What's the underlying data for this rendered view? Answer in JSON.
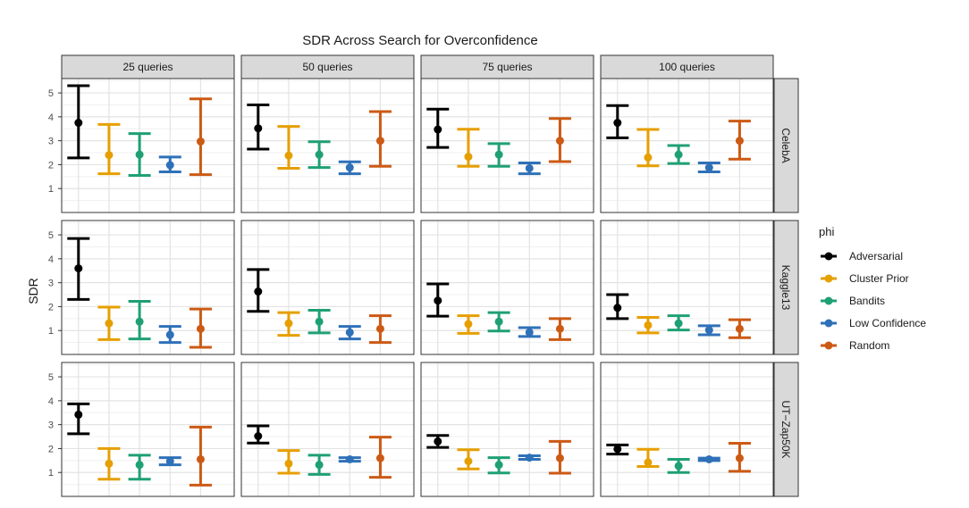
{
  "chart_data": {
    "type": "errorbar",
    "title": "SDR Across Search for Overconfidence",
    "ylabel": "SDR",
    "xlabel": "",
    "ylim": [
      0,
      5.6
    ],
    "yticks": [
      1,
      2,
      3,
      4,
      5
    ],
    "grid": true,
    "legend": {
      "title": "phi",
      "position": "right"
    },
    "columns": [
      "25 queries",
      "50 queries",
      "75 queries",
      "100 queries"
    ],
    "rows": [
      "CelebA",
      "Kaggle13",
      "UT−Zap50K"
    ],
    "series": [
      {
        "name": "Adversarial",
        "color": "#000000"
      },
      {
        "name": "Cluster Prior",
        "color": "#E69F00"
      },
      {
        "name": "Bandits",
        "color": "#1FA074"
      },
      {
        "name": "Low Confidence",
        "color": "#2F71B8"
      },
      {
        "name": "Random",
        "color": "#CC5A14"
      }
    ],
    "panels": [
      [
        [
          [
            3.75,
            2.28,
            5.3
          ],
          [
            2.4,
            1.62,
            3.68
          ],
          [
            2.42,
            1.55,
            3.3
          ],
          [
            1.98,
            1.7,
            2.32
          ],
          [
            2.97,
            1.58,
            4.75
          ]
        ],
        [
          [
            3.52,
            2.65,
            4.5
          ],
          [
            2.38,
            1.85,
            3.6
          ],
          [
            2.42,
            1.88,
            2.96
          ],
          [
            1.88,
            1.62,
            2.12
          ],
          [
            3.0,
            1.93,
            4.22
          ]
        ],
        [
          [
            3.47,
            2.72,
            4.32
          ],
          [
            2.33,
            1.93,
            3.48
          ],
          [
            2.42,
            1.93,
            2.88
          ],
          [
            1.85,
            1.62,
            2.07
          ],
          [
            3.0,
            2.13,
            3.93
          ]
        ],
        [
          [
            3.75,
            3.12,
            4.47
          ],
          [
            2.3,
            1.95,
            3.47
          ],
          [
            2.42,
            2.05,
            2.8
          ],
          [
            1.88,
            1.7,
            2.07
          ],
          [
            3.0,
            2.23,
            3.82
          ]
        ]
      ],
      [
        [
          [
            3.6,
            2.3,
            4.85
          ],
          [
            1.3,
            0.62,
            1.98
          ],
          [
            1.37,
            0.65,
            2.22
          ],
          [
            0.82,
            0.5,
            1.17
          ],
          [
            1.07,
            0.3,
            1.9
          ]
        ],
        [
          [
            2.63,
            1.8,
            3.55
          ],
          [
            1.3,
            0.8,
            1.75
          ],
          [
            1.37,
            0.9,
            1.85
          ],
          [
            0.92,
            0.65,
            1.17
          ],
          [
            1.07,
            0.5,
            1.62
          ]
        ],
        [
          [
            2.25,
            1.6,
            2.95
          ],
          [
            1.27,
            0.88,
            1.62
          ],
          [
            1.37,
            0.98,
            1.75
          ],
          [
            0.92,
            0.75,
            1.12
          ],
          [
            1.07,
            0.62,
            1.5
          ]
        ],
        [
          [
            1.95,
            1.5,
            2.5
          ],
          [
            1.22,
            0.9,
            1.55
          ],
          [
            1.3,
            1.02,
            1.62
          ],
          [
            1.02,
            0.82,
            1.2
          ],
          [
            1.07,
            0.7,
            1.45
          ]
        ]
      ],
      [
        [
          [
            3.42,
            2.62,
            3.87
          ],
          [
            1.37,
            0.72,
            2.0
          ],
          [
            1.32,
            0.72,
            1.72
          ],
          [
            1.47,
            1.32,
            1.62
          ],
          [
            1.55,
            0.47,
            2.9
          ]
        ],
        [
          [
            2.52,
            2.23,
            2.95
          ],
          [
            1.37,
            0.97,
            1.92
          ],
          [
            1.32,
            0.92,
            1.72
          ],
          [
            1.55,
            1.47,
            1.62
          ],
          [
            1.6,
            0.8,
            2.48
          ]
        ],
        [
          [
            2.3,
            2.05,
            2.55
          ],
          [
            1.47,
            1.15,
            1.95
          ],
          [
            1.32,
            0.98,
            1.62
          ],
          [
            1.62,
            1.55,
            1.7
          ],
          [
            1.6,
            0.97,
            2.3
          ]
        ],
        [
          [
            1.98,
            1.77,
            2.15
          ],
          [
            1.42,
            1.25,
            1.97
          ],
          [
            1.27,
            1.0,
            1.55
          ],
          [
            1.55,
            1.5,
            1.6
          ],
          [
            1.6,
            1.05,
            2.22
          ]
        ]
      ]
    ]
  }
}
